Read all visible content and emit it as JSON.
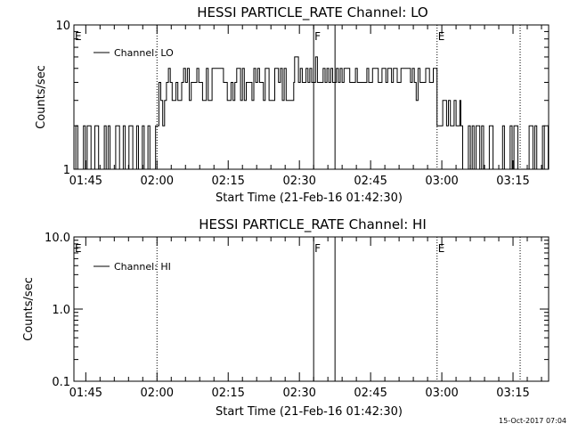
{
  "footer_timestamp": "15-Oct-2017 07:04",
  "chart_data": [
    {
      "type": "line",
      "title": "HESSI PARTICLE_RATE Channel: LO",
      "xlabel": "Start Time (21-Feb-16 01:42:30)",
      "ylabel": "Counts/sec",
      "xscale": "time",
      "yscale": "log",
      "xlim": [
        "01:42:30",
        "03:22:30"
      ],
      "ylim": [
        1,
        10
      ],
      "x_ticks": [
        "01:45",
        "02:00",
        "02:15",
        "02:30",
        "02:45",
        "03:00",
        "03:15"
      ],
      "y_tick_labels": [
        "1",
        "10"
      ],
      "legend": {
        "position": "top-left",
        "entries": [
          "Channel: LO"
        ]
      },
      "flags": [
        {
          "label": "E",
          "time": "01:42:30",
          "style": "dotted"
        },
        {
          "label": "",
          "time": "02:00:00",
          "style": "dotted"
        },
        {
          "label": "F",
          "time": "02:33:00",
          "style": "solid"
        },
        {
          "label": "",
          "time": "02:37:30",
          "style": "solid"
        },
        {
          "label": "E",
          "time": "02:59:00",
          "style": "dotted"
        },
        {
          "label": "",
          "time": "03:16:30",
          "style": "dotted"
        }
      ],
      "series": [
        {
          "name": "Channel: LO",
          "segments": [
            {
              "start": "01:42:30",
              "end": "02:00:00",
              "level_min": 1,
              "level_max": 2
            },
            {
              "start": "02:00:00",
              "end": "02:02:00",
              "level_min": 2,
              "level_max": 4
            },
            {
              "start": "02:02:00",
              "end": "02:29:00",
              "level_min": 3,
              "level_max": 5
            },
            {
              "start": "02:29:00",
              "end": "02:37:00",
              "level_min": 4,
              "level_max": 6
            },
            {
              "start": "02:37:00",
              "end": "02:53:00",
              "level_min": 4,
              "level_max": 5
            },
            {
              "start": "02:53:00",
              "end": "02:59:00",
              "level_min": 3,
              "level_max": 5
            },
            {
              "start": "02:59:00",
              "end": "03:04:00",
              "level_min": 2,
              "level_max": 3
            },
            {
              "start": "03:04:00",
              "end": "03:22:30",
              "level_min": 1,
              "level_max": 2
            }
          ]
        }
      ]
    },
    {
      "type": "line",
      "title": "HESSI PARTICLE_RATE Channel: HI",
      "xlabel": "Start Time (21-Feb-16 01:42:30)",
      "ylabel": "Counts/sec",
      "xscale": "time",
      "yscale": "log",
      "xlim": [
        "01:42:30",
        "03:22:30"
      ],
      "ylim": [
        0.1,
        10
      ],
      "x_ticks": [
        "01:45",
        "02:00",
        "02:15",
        "02:30",
        "02:45",
        "03:00",
        "03:15"
      ],
      "y_tick_labels": [
        "0.1",
        "1.0",
        "10.0"
      ],
      "legend": {
        "position": "top-left",
        "entries": [
          "Channel: HI"
        ]
      },
      "flags": [
        {
          "label": "E",
          "time": "01:42:30",
          "style": "dotted"
        },
        {
          "label": "",
          "time": "02:00:00",
          "style": "dotted"
        },
        {
          "label": "F",
          "time": "02:33:00",
          "style": "solid"
        },
        {
          "label": "",
          "time": "02:37:30",
          "style": "solid"
        },
        {
          "label": "E",
          "time": "02:59:00",
          "style": "dotted"
        },
        {
          "label": "",
          "time": "03:16:30",
          "style": "dotted"
        }
      ],
      "series": [
        {
          "name": "Channel: HI",
          "segments": []
        }
      ]
    }
  ]
}
